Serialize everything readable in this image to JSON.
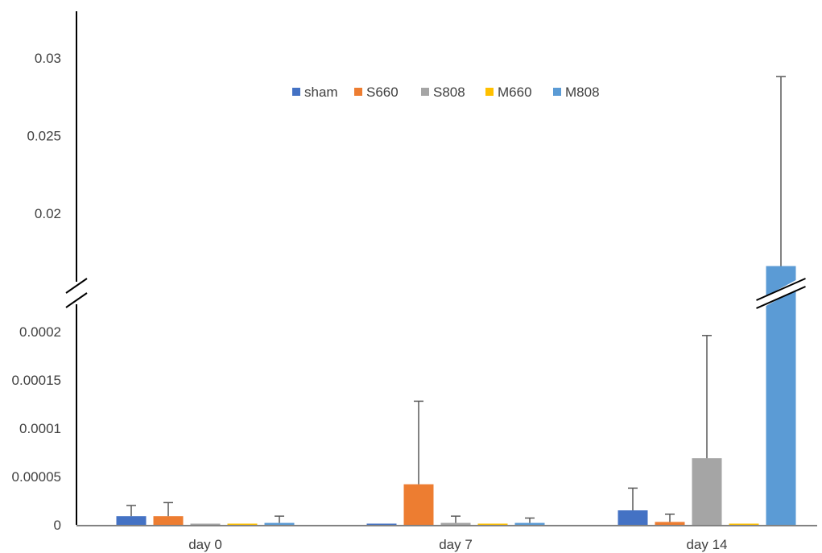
{
  "chart_data": {
    "type": "bar",
    "title": "",
    "xlabel": "",
    "ylabel": "",
    "categories": [
      "day 0",
      "day 7",
      "day 14"
    ],
    "axis_break": true,
    "lower_segment": {
      "ylim": [
        0,
        0.0002
      ],
      "ticks": [
        0,
        5e-05,
        0.0001,
        0.00015,
        0.0002
      ],
      "tick_labels": [
        "0",
        "0.00005",
        "0.0001",
        "0.00015",
        "0.0002"
      ]
    },
    "upper_segment": {
      "ylim": [
        0.015,
        0.033
      ],
      "ticks": [
        0.02,
        0.025,
        0.03
      ],
      "tick_labels": [
        "0.02",
        "0.025",
        "0.03"
      ]
    },
    "legend_position": "top-center",
    "grid": false,
    "series": [
      {
        "name": "sham",
        "color": "#4472C4",
        "values": [
          9e-06,
          0.0,
          1.5e-05
        ],
        "errors": [
          1.1e-05,
          0.0,
          2.3e-05
        ]
      },
      {
        "name": "S660",
        "color": "#ED7D31",
        "values": [
          9e-06,
          4.2e-05,
          3e-06
        ],
        "errors": [
          1.4e-05,
          8.6e-05,
          8e-06
        ]
      },
      {
        "name": "S808",
        "color": "#A5A5A5",
        "values": [
          0.0,
          2e-06,
          6.9e-05
        ],
        "errors": [
          0.0,
          7e-06,
          0.000127
        ]
      },
      {
        "name": "M660",
        "color": "#FFC000",
        "values": [
          0.0,
          0.0,
          0.0
        ],
        "errors": [
          0.0,
          0.0,
          0.0
        ]
      },
      {
        "name": "M808",
        "color": "#5B9BD5",
        "values": [
          2e-06,
          2e-06,
          0.0166
        ],
        "errors": [
          7e-06,
          5e-06,
          0.0122
        ]
      }
    ]
  }
}
